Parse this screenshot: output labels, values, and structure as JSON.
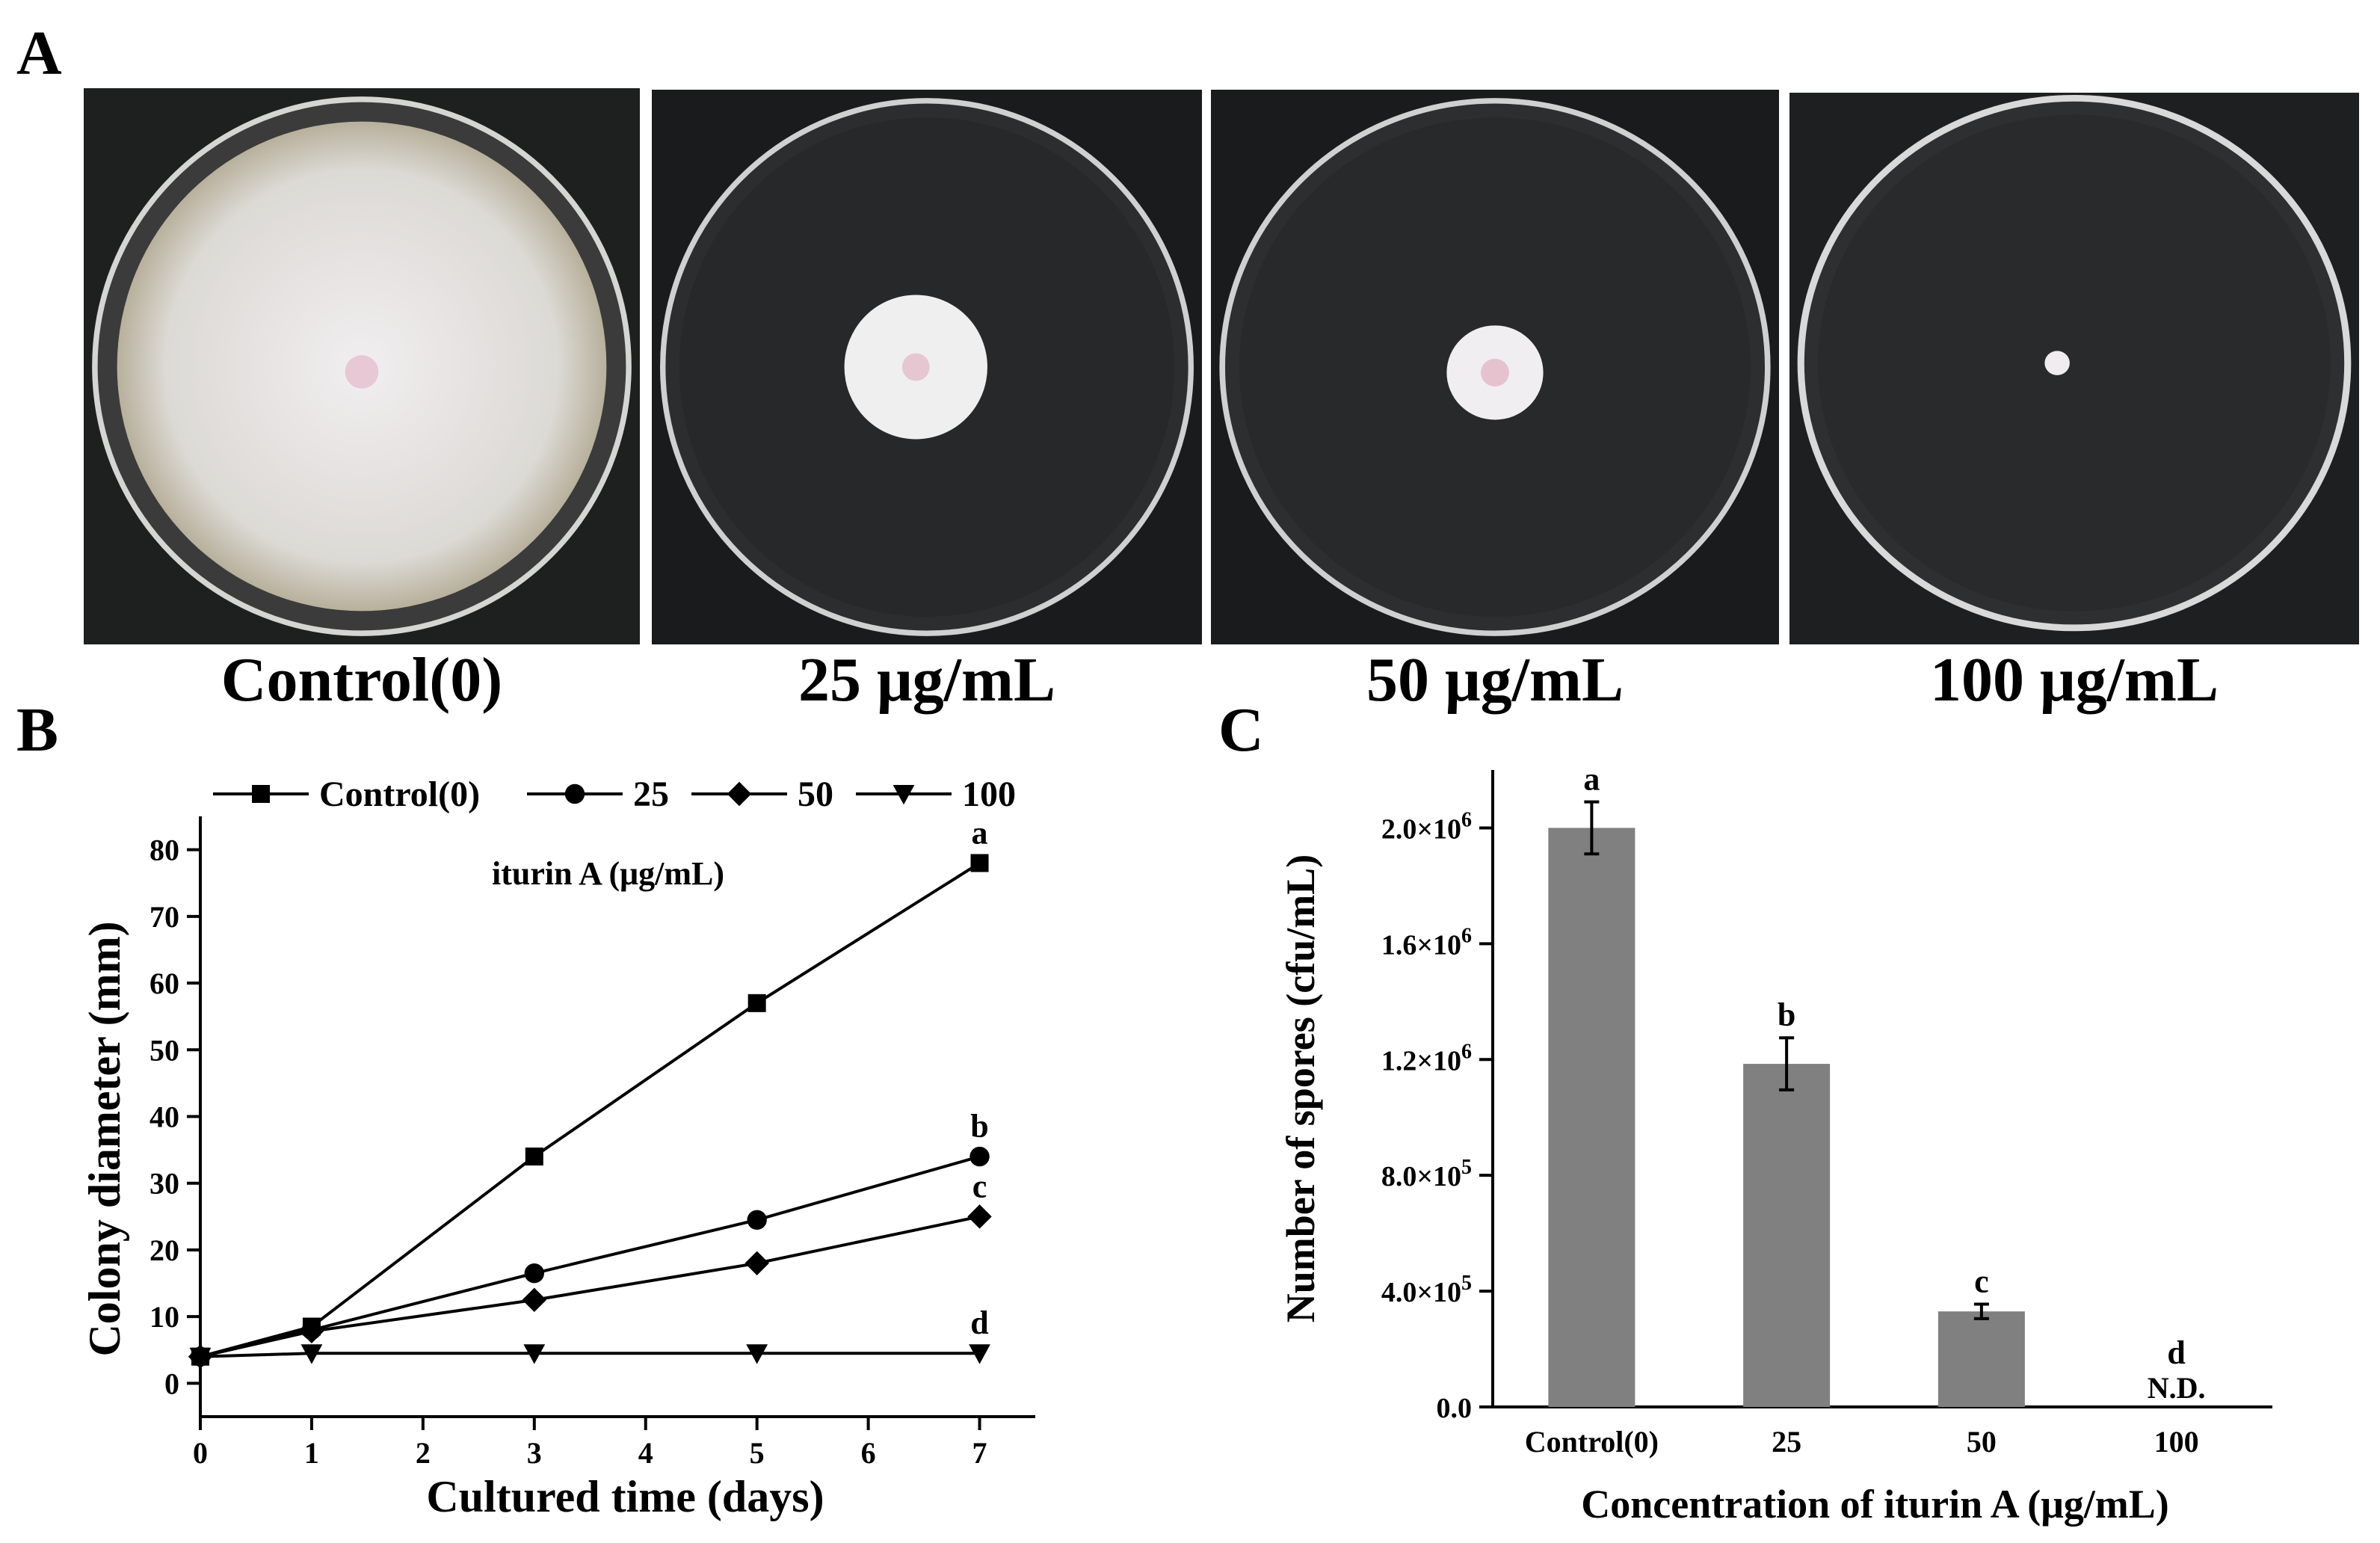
{
  "panels": {
    "a": {
      "letter": "A"
    },
    "b": {
      "letter": "B"
    },
    "c": {
      "letter": "C"
    }
  },
  "photos": [
    {
      "caption": "Control(0)"
    },
    {
      "caption": "25 μg/mL"
    },
    {
      "caption": "50 μg/mL"
    },
    {
      "caption": "100 μg/mL"
    }
  ],
  "colors": {
    "line": "#000000",
    "bar": "#808080",
    "plate_bg": "#1b1c1d"
  },
  "chart_data": [
    {
      "type": "line",
      "xlabel": "Cultured time (days)",
      "ylabel": "Colony diameter (mm)",
      "xlim": [
        0,
        7.5
      ],
      "ylim": [
        -5,
        85
      ],
      "xticks": [
        0,
        1,
        2,
        3,
        4,
        5,
        6,
        7
      ],
      "yticks": [
        0,
        10,
        20,
        30,
        40,
        50,
        60,
        70,
        80
      ],
      "legend_position": "top",
      "legend_note": "iturin A (μg/mL)",
      "x": [
        0,
        1,
        3,
        5,
        7
      ],
      "series": [
        {
          "name": "Control(0)",
          "marker": "square",
          "values": [
            4,
            8.5,
            34,
            57,
            78
          ],
          "letter": "a"
        },
        {
          "name": "25",
          "marker": "circle",
          "values": [
            4,
            8,
            16.5,
            24.5,
            34
          ],
          "letter": "b"
        },
        {
          "name": "50",
          "marker": "diamond",
          "values": [
            4,
            7.8,
            12.5,
            18,
            25
          ],
          "letter": "c"
        },
        {
          "name": "100",
          "marker": "triangle-down",
          "values": [
            4,
            4.5,
            4.5,
            4.5,
            4.5
          ],
          "letter": "d"
        }
      ]
    },
    {
      "type": "bar",
      "xlabel": "Concentration of iturin A (μg/mL)",
      "ylabel": "Number of spores (cfu/mL)",
      "ylim": [
        0,
        2200000
      ],
      "yticks": [
        0,
        400000,
        800000,
        1200000,
        1600000,
        2000000
      ],
      "ytick_labels": [
        {
          "mantissa": "0.0",
          "exp": ""
        },
        {
          "mantissa": "4.0×10",
          "exp": "5"
        },
        {
          "mantissa": "8.0×10",
          "exp": "5"
        },
        {
          "mantissa": "1.2×10",
          "exp": "6"
        },
        {
          "mantissa": "1.6×10",
          "exp": "6"
        },
        {
          "mantissa": "2.0×10",
          "exp": "6"
        }
      ],
      "categories": [
        "Control(0)",
        "25",
        "50",
        "100"
      ],
      "values": [
        2000000,
        1185000,
        330000,
        0
      ],
      "errors": [
        90000,
        90000,
        25000,
        0
      ],
      "letters": [
        "a",
        "b",
        "c",
        "d"
      ],
      "annotations": [
        "",
        "",
        "",
        "N.D."
      ]
    }
  ]
}
